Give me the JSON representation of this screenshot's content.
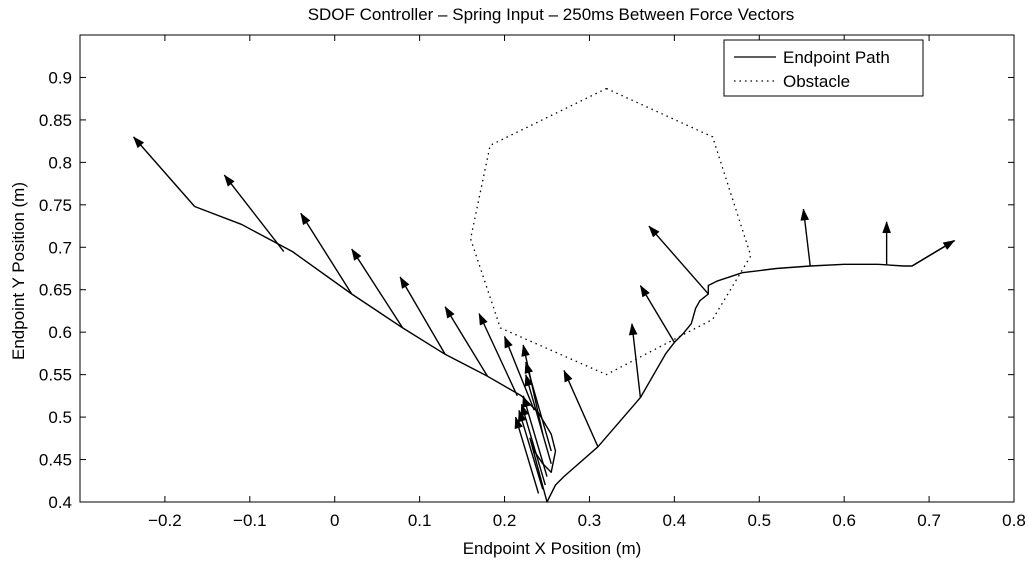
{
  "chart_data": {
    "type": "line",
    "title": "SDOF Controller – Spring Input – 250ms Between Force Vectors",
    "xlabel": "Endpoint X Position (m)",
    "ylabel": "Endpoint Y Position (m)",
    "xlim": [
      -0.3,
      0.8
    ],
    "ylim": [
      0.4,
      0.95
    ],
    "xticks": [
      -0.2,
      -0.1,
      0,
      0.1,
      0.2,
      0.3,
      0.4,
      0.5,
      0.6,
      0.7,
      0.8
    ],
    "xtick_labels": [
      "−0.2",
      "−0.1",
      "0",
      "0.1",
      "0.2",
      "0.3",
      "0.4",
      "0.5",
      "0.6",
      "0.7",
      "0.8"
    ],
    "yticks": [
      0.4,
      0.45,
      0.5,
      0.55,
      0.6,
      0.65,
      0.7,
      0.75,
      0.8,
      0.85,
      0.9
    ],
    "ytick_labels": [
      "0.4",
      "0.45",
      "0.5",
      "0.55",
      "0.6",
      "0.65",
      "0.7",
      "0.75",
      "0.8",
      "0.85",
      "0.9"
    ],
    "legend": {
      "placement": "top-right"
    },
    "series": [
      {
        "name": "Endpoint Path",
        "style": "solid",
        "color": "#000000",
        "x": [
          -0.165,
          -0.11,
          -0.05,
          0.02,
          0.08,
          0.13,
          0.18,
          0.22,
          0.24,
          0.255,
          0.26,
          0.255,
          0.245,
          0.235,
          0.23,
          0.25,
          0.26,
          0.27,
          0.31,
          0.36,
          0.39,
          0.4,
          0.41,
          0.42,
          0.425,
          0.43,
          0.44,
          0.44,
          0.45,
          0.48,
          0.52,
          0.56,
          0.6,
          0.64,
          0.67,
          0.68,
          0.73
        ],
        "y": [
          0.748,
          0.727,
          0.695,
          0.645,
          0.605,
          0.574,
          0.548,
          0.525,
          0.505,
          0.48,
          0.46,
          0.435,
          0.445,
          0.46,
          0.475,
          0.4,
          0.42,
          0.43,
          0.465,
          0.523,
          0.575,
          0.588,
          0.598,
          0.61,
          0.628,
          0.637,
          0.645,
          0.655,
          0.66,
          0.67,
          0.675,
          0.678,
          0.68,
          0.68,
          0.678,
          0.678,
          0.708
        ]
      },
      {
        "name": "Obstacle",
        "style": "dotted",
        "color": "#000000",
        "x": [
          0.32,
          0.445,
          0.49,
          0.445,
          0.32,
          0.195,
          0.16,
          0.183,
          0.32
        ],
        "y": [
          0.887,
          0.83,
          0.69,
          0.615,
          0.55,
          0.605,
          0.71,
          0.82,
          0.887
        ]
      }
    ],
    "force_vectors": [
      {
        "x0": -0.165,
        "y0": 0.748,
        "x1": -0.237,
        "y1": 0.83
      },
      {
        "x0": -0.06,
        "y0": 0.695,
        "x1": -0.13,
        "y1": 0.785
      },
      {
        "x0": 0.02,
        "y0": 0.645,
        "x1": -0.04,
        "y1": 0.74
      },
      {
        "x0": 0.08,
        "y0": 0.605,
        "x1": 0.02,
        "y1": 0.698
      },
      {
        "x0": 0.13,
        "y0": 0.574,
        "x1": 0.077,
        "y1": 0.665
      },
      {
        "x0": 0.18,
        "y0": 0.548,
        "x1": 0.13,
        "y1": 0.63
      },
      {
        "x0": 0.215,
        "y0": 0.525,
        "x1": 0.17,
        "y1": 0.622
      },
      {
        "x0": 0.235,
        "y0": 0.508,
        "x1": 0.2,
        "y1": 0.595
      },
      {
        "x0": 0.245,
        "y0": 0.48,
        "x1": 0.222,
        "y1": 0.585
      },
      {
        "x0": 0.255,
        "y0": 0.46,
        "x1": 0.225,
        "y1": 0.565
      },
      {
        "x0": 0.255,
        "y0": 0.445,
        "x1": 0.225,
        "y1": 0.55
      },
      {
        "x0": 0.25,
        "y0": 0.43,
        "x1": 0.222,
        "y1": 0.525
      },
      {
        "x0": 0.248,
        "y0": 0.42,
        "x1": 0.22,
        "y1": 0.515
      },
      {
        "x0": 0.245,
        "y0": 0.415,
        "x1": 0.217,
        "y1": 0.508
      },
      {
        "x0": 0.24,
        "y0": 0.41,
        "x1": 0.213,
        "y1": 0.5
      },
      {
        "x0": 0.31,
        "y0": 0.465,
        "x1": 0.27,
        "y1": 0.555
      },
      {
        "x0": 0.36,
        "y0": 0.523,
        "x1": 0.35,
        "y1": 0.61
      },
      {
        "x0": 0.4,
        "y0": 0.588,
        "x1": 0.36,
        "y1": 0.655
      },
      {
        "x0": 0.44,
        "y0": 0.645,
        "x1": 0.37,
        "y1": 0.725
      },
      {
        "x0": 0.56,
        "y0": 0.678,
        "x1": 0.552,
        "y1": 0.745
      },
      {
        "x0": 0.65,
        "y0": 0.68,
        "x1": 0.65,
        "y1": 0.73
      },
      {
        "x0": 0.68,
        "y0": 0.678,
        "x1": 0.73,
        "y1": 0.708
      }
    ]
  }
}
